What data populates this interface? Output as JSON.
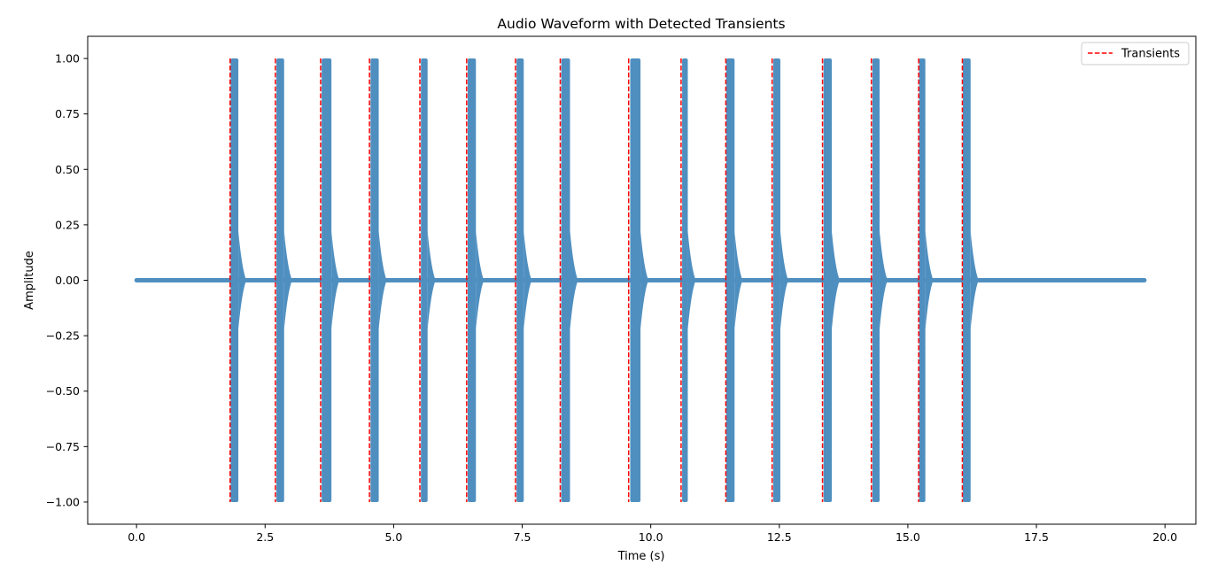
{
  "chart_data": {
    "type": "line",
    "title": "Audio Waveform with Detected Transients",
    "xlabel": "Time (s)",
    "ylabel": "Amplitude",
    "xlim": [
      -0.95,
      20.6
    ],
    "ylim": [
      -1.1,
      1.1
    ],
    "x_ticks": [
      0.0,
      2.5,
      5.0,
      7.5,
      10.0,
      12.5,
      15.0,
      17.5,
      20.0
    ],
    "x_tick_labels": [
      "0.0",
      "2.5",
      "5.0",
      "7.5",
      "10.0",
      "12.5",
      "15.0",
      "17.5",
      "20.0"
    ],
    "y_ticks": [
      1.0,
      0.75,
      0.5,
      0.25,
      0.0,
      -0.25,
      -0.5,
      -0.75,
      -1.0
    ],
    "y_tick_labels": [
      "1.00",
      "0.75",
      "0.50",
      "0.25",
      "0.00",
      "−0.25",
      "−0.50",
      "−0.75",
      "−1.00"
    ],
    "grid": false,
    "legend_position": "top-right",
    "series": [
      {
        "kind": "waveform",
        "color": "#4f8fc0",
        "duration": [
          0.0,
          19.6
        ],
        "baseline_amplitude": 0.0,
        "bursts": [
          {
            "start": 1.83,
            "end": 1.98,
            "amplitude": 1.0
          },
          {
            "start": 2.72,
            "end": 2.87,
            "amplitude": 1.0
          },
          {
            "start": 3.6,
            "end": 3.79,
            "amplitude": 1.0
          },
          {
            "start": 4.55,
            "end": 4.71,
            "amplitude": 1.0
          },
          {
            "start": 5.53,
            "end": 5.66,
            "amplitude": 1.0
          },
          {
            "start": 6.44,
            "end": 6.6,
            "amplitude": 1.0
          },
          {
            "start": 7.39,
            "end": 7.53,
            "amplitude": 1.0
          },
          {
            "start": 8.26,
            "end": 8.43,
            "amplitude": 1.0
          },
          {
            "start": 9.6,
            "end": 9.8,
            "amplitude": 1.0
          },
          {
            "start": 10.61,
            "end": 10.72,
            "amplitude": 1.0
          },
          {
            "start": 11.47,
            "end": 11.63,
            "amplitude": 1.0
          },
          {
            "start": 12.38,
            "end": 12.52,
            "amplitude": 1.0
          },
          {
            "start": 13.36,
            "end": 13.52,
            "amplitude": 1.0
          },
          {
            "start": 14.31,
            "end": 14.45,
            "amplitude": 1.0
          },
          {
            "start": 15.22,
            "end": 15.34,
            "amplitude": 1.0
          },
          {
            "start": 16.07,
            "end": 16.22,
            "amplitude": 1.0
          }
        ]
      },
      {
        "name": "Transients",
        "kind": "vlines",
        "color": "#ff0000",
        "linestyle": "dashed",
        "x": [
          1.82,
          2.7,
          3.58,
          4.53,
          5.51,
          6.42,
          7.37,
          8.24,
          9.57,
          10.59,
          11.46,
          12.36,
          13.34,
          14.29,
          15.21,
          16.06
        ],
        "ymin": -1.0,
        "ymax": 1.0
      }
    ]
  }
}
